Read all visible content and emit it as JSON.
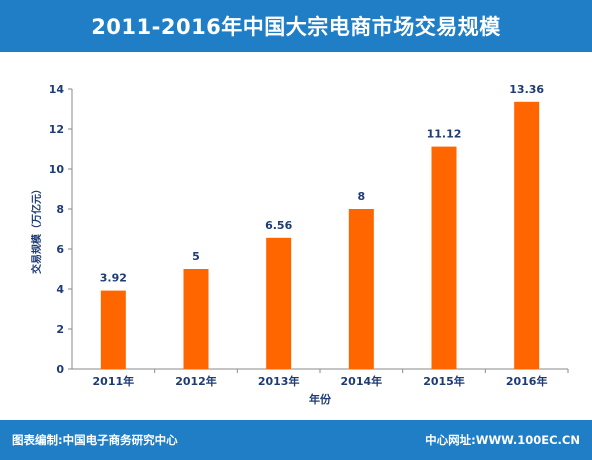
{
  "header": {
    "title": "2011-2016年中国大宗电商市场交易规模"
  },
  "footer": {
    "left": "图表编制:中国电子商务研究中心",
    "right": "中心网址:WWW.100EC.CN"
  },
  "colors": {
    "header_bg": "#1f7ec6",
    "bar": "#ff6600",
    "axis_text": "#1f3b73",
    "value_label": "#1f3b73"
  },
  "chart_data": {
    "type": "bar",
    "categories": [
      "2011年",
      "2012年",
      "2013年",
      "2014年",
      "2015年",
      "2016年"
    ],
    "values": [
      3.92,
      5,
      6.56,
      8,
      11.12,
      13.36
    ],
    "value_labels": [
      "3.92",
      "5",
      "6.56",
      "8",
      "11.12",
      "13.36"
    ],
    "xlabel": "年份",
    "ylabel": "交易规模（万亿元）",
    "ylim": [
      0,
      14
    ],
    "yticks": [
      0,
      2,
      4,
      6,
      8,
      10,
      12,
      14
    ],
    "grid": false,
    "legend": "none"
  }
}
